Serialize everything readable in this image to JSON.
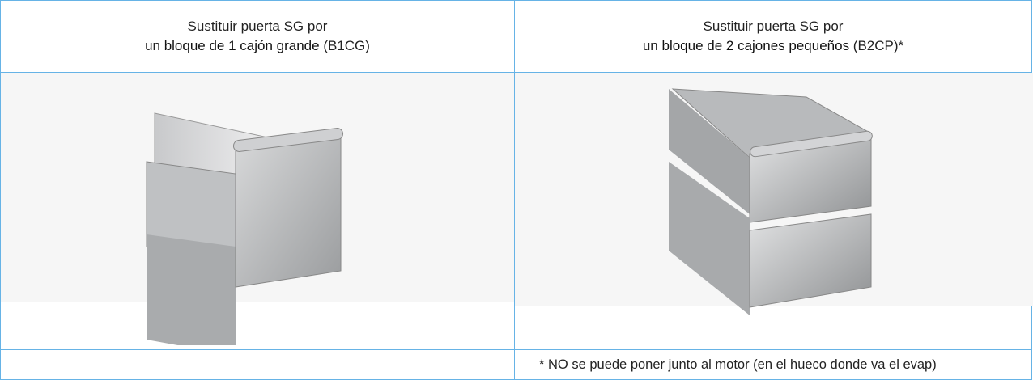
{
  "header": [
    {
      "line1": "Sustituir puerta SG por",
      "line2": [
        "un ",
        "bloque de 1 cajón grande",
        " (B1CG)"
      ]
    },
    {
      "line1": "Sustituir puerta SG por",
      "line2": [
        "un ",
        "bloque de 2 cajones pequeños",
        " (B2CP)*"
      ]
    }
  ],
  "note": "* NO se puede poner junto al motor (en el hueco donde va el evap)"
}
